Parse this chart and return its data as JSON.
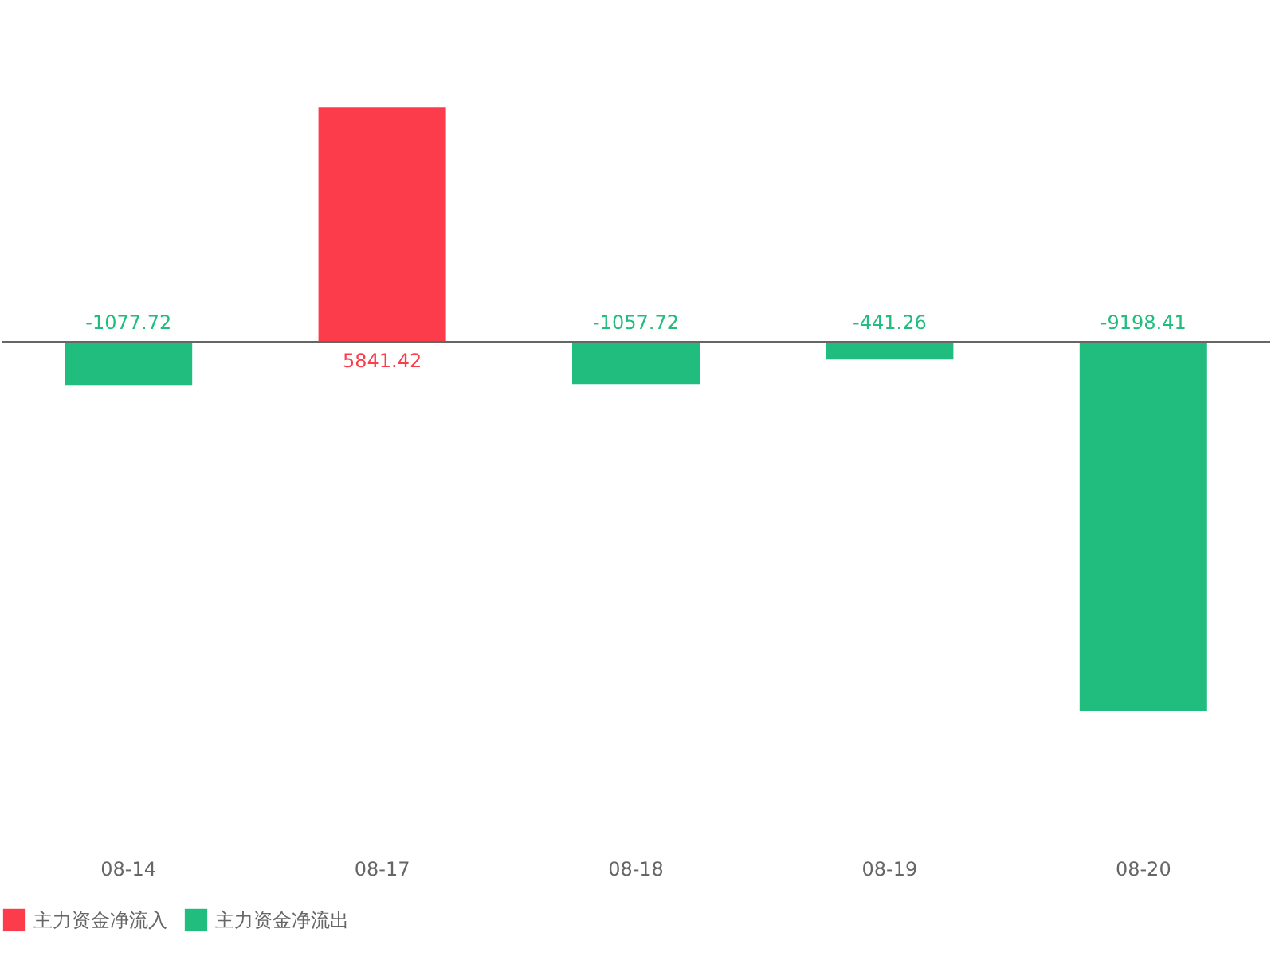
{
  "chart_data": {
    "type": "bar",
    "categories": [
      "08-14",
      "08-17",
      "08-18",
      "08-19",
      "08-20"
    ],
    "series": [
      {
        "name": "主力资金净流入",
        "color": "#fd3c4b",
        "values": [
          null,
          5841.42,
          null,
          null,
          null
        ]
      },
      {
        "name": "主力资金净流出",
        "color": "#20bd7e",
        "values": [
          -1077.72,
          null,
          -1057.72,
          -441.26,
          -9198.41
        ]
      }
    ],
    "data_labels": true,
    "legend": "bottom",
    "grid": false
  }
}
